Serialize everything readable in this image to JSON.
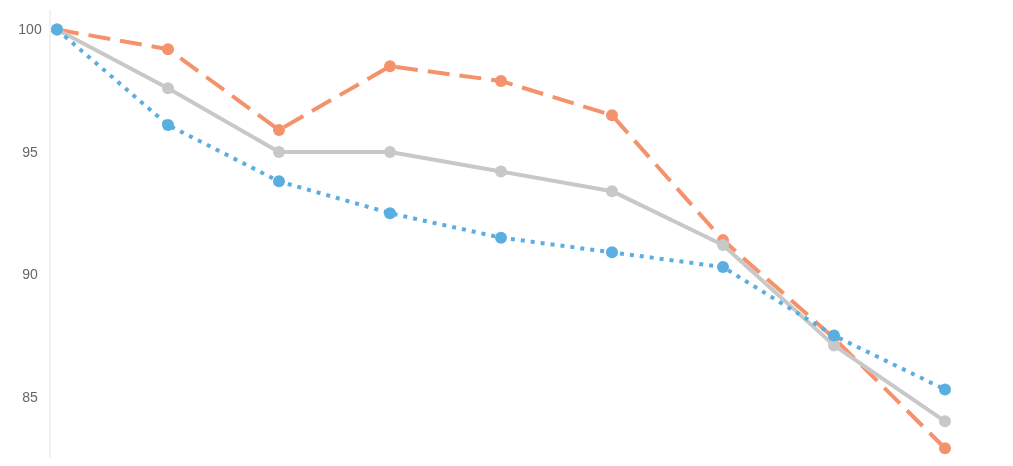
{
  "chart_data": {
    "type": "line",
    "categories": [
      null,
      null,
      null,
      null,
      null,
      null,
      null,
      null,
      null
    ],
    "series": [
      {
        "color": "#f4926c",
        "line_style": "dashed",
        "values": [
          100,
          99.2,
          95.9,
          98.5,
          97.9,
          96.5,
          91.4,
          87.4,
          82.9
        ]
      },
      {
        "color": "#c8c8c8",
        "line_style": "solid",
        "values": [
          100,
          97.6,
          95.0,
          95.0,
          94.2,
          93.4,
          91.2,
          87.1,
          84.0
        ]
      },
      {
        "color": "#5aaee0",
        "line_style": "dotted",
        "values": [
          100,
          96.1,
          93.8,
          92.5,
          91.5,
          90.9,
          90.3,
          87.5,
          85.3
        ]
      }
    ],
    "ylim": [
      82.5,
      100.8
    ],
    "yticks": [
      85,
      90,
      95,
      100
    ],
    "marker": "circle",
    "grid": false
  }
}
